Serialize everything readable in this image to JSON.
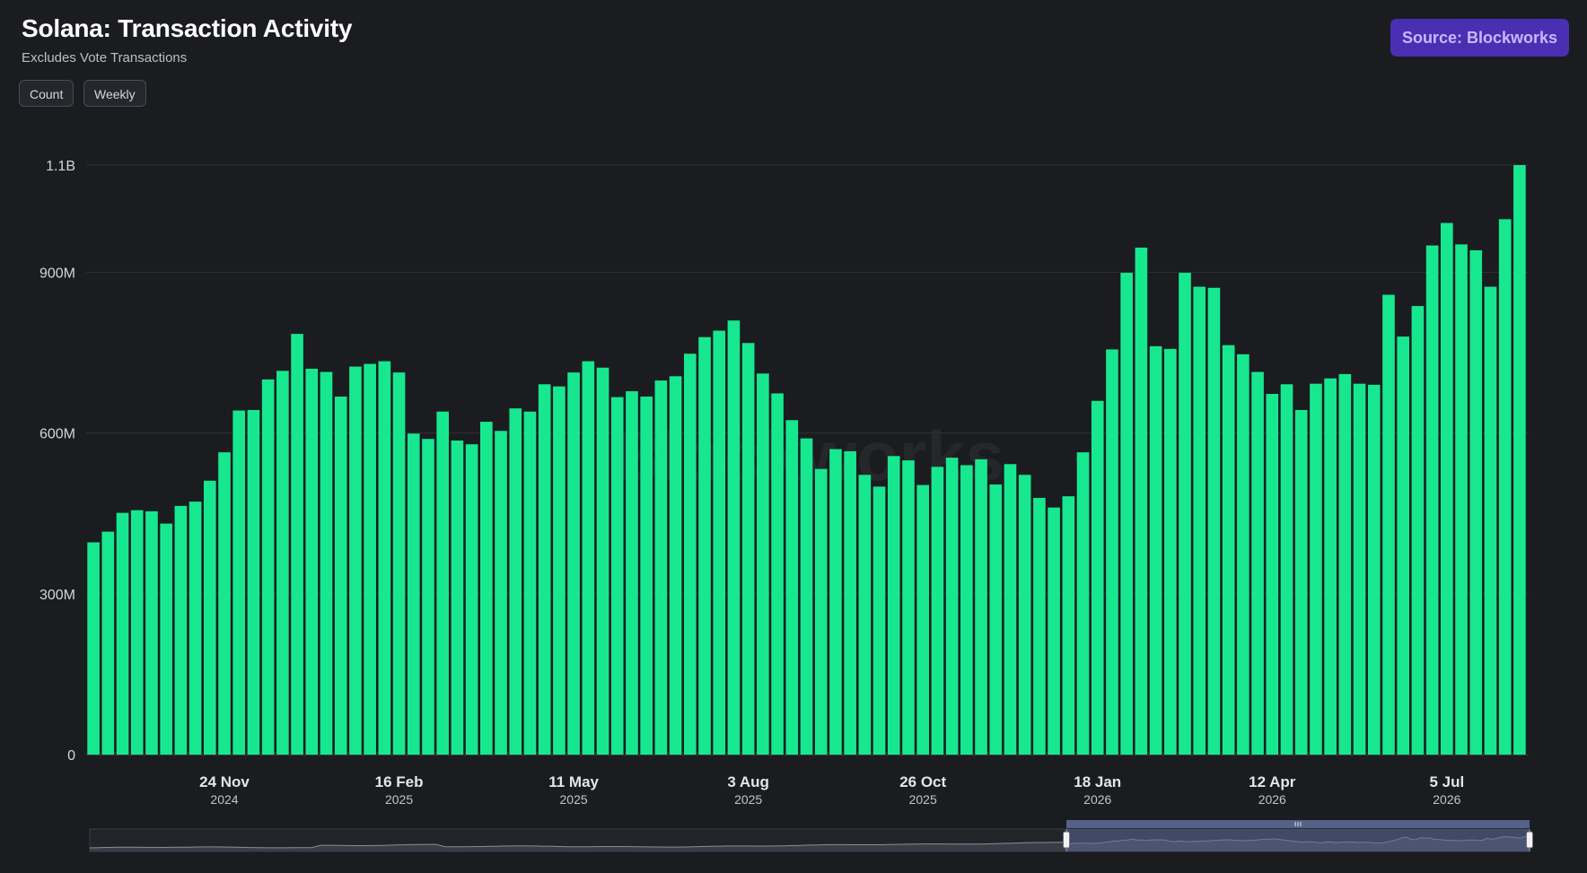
{
  "header": {
    "title": "Solana: Transaction Activity",
    "subtitle": "Excludes Vote Transactions"
  },
  "controls": {
    "metric_label": "Count",
    "interval_label": "Weekly"
  },
  "source_badge": {
    "label": "Source: Blockworks"
  },
  "watermark": "Blockworks",
  "colors": {
    "bar": "#17e88f",
    "background": "#1b1c20",
    "badge": "#4a2fb3",
    "navigator_selection": "#5a6a99"
  },
  "chart_data": {
    "type": "bar",
    "title": "Solana: Transaction Activity",
    "subtitle": "Excludes Vote Transactions",
    "xlabel": "",
    "ylabel": "",
    "ylim": [
      0,
      1100000000
    ],
    "y_ticks": [
      {
        "value": 0,
        "label": "0"
      },
      {
        "value": 300000000,
        "label": "300M"
      },
      {
        "value": 600000000,
        "label": "600M"
      },
      {
        "value": 900000000,
        "label": "900M"
      },
      {
        "value": 1100000000,
        "label": "1.1B"
      }
    ],
    "x_ticks": [
      {
        "index": 9,
        "label": "24 Nov",
        "year": "2024"
      },
      {
        "index": 21,
        "label": "16 Feb",
        "year": "2025"
      },
      {
        "index": 33,
        "label": "11 May",
        "year": "2025"
      },
      {
        "index": 45,
        "label": "3 Aug",
        "year": "2025"
      },
      {
        "index": 57,
        "label": "26 Oct",
        "year": "2025"
      },
      {
        "index": 69,
        "label": "18 Jan",
        "year": "2026"
      },
      {
        "index": 81,
        "label": "12 Apr",
        "year": "2026"
      },
      {
        "index": 93,
        "label": "5 Jul",
        "year": "2026"
      }
    ],
    "grid": true,
    "series": [
      {
        "values": [
          396000000,
          416000000,
          451000000,
          456000000,
          454000000,
          431000000,
          464000000,
          472000000,
          511000000,
          564000000,
          642000000,
          643000000,
          700000000,
          716000000,
          785000000,
          720000000,
          714000000,
          668000000,
          724000000,
          729000000,
          734000000,
          713000000,
          599000000,
          589000000,
          640000000,
          586000000,
          579000000,
          621000000,
          604000000,
          646000000,
          640000000,
          691000000,
          687000000,
          713000000,
          734000000,
          722000000,
          667000000,
          678000000,
          668000000,
          698000000,
          706000000,
          748000000,
          779000000,
          791000000,
          810000000,
          768000000,
          711000000,
          674000000,
          624000000,
          590000000,
          533000000,
          570000000,
          566000000,
          522000000,
          500000000,
          557000000,
          549000000,
          503000000,
          537000000,
          554000000,
          540000000,
          551000000,
          504000000,
          542000000,
          522000000,
          479000000,
          461000000,
          482000000,
          564000000,
          660000000,
          756000000,
          899000000,
          946000000,
          762000000,
          757000000,
          899000000,
          873000000,
          871000000,
          764000000,
          747000000,
          714000000,
          673000000,
          691000000,
          643000000,
          692000000,
          702000000,
          710000000,
          692000000,
          690000000,
          858000000,
          780000000,
          837000000,
          950000000,
          992000000,
          952000000,
          941000000,
          873000000,
          999000000,
          1100000000
        ]
      }
    ]
  }
}
